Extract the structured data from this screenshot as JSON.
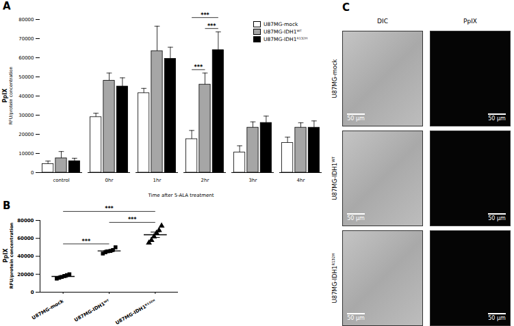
{
  "chart_data": [
    {
      "type": "bar",
      "panel": "A",
      "y_label": [
        "PpIX",
        "RFU/protein concentration"
      ],
      "x_label": "Time after 5-ALA treatment",
      "categories": [
        "control",
        "0hr",
        "1hr",
        "2hr",
        "3hr",
        "4hr"
      ],
      "series": [
        {
          "name": "U87MG-mock",
          "color": "#ffffff",
          "values": [
            4500,
            29000,
            41500,
            17500,
            10500,
            15500
          ],
          "errors": [
            1500,
            2000,
            2500,
            4500,
            3500,
            3000
          ]
        },
        {
          "name": "U87MG-IDH1ᵂᵀ",
          "color": "#a6a6a6",
          "values": [
            7500,
            48000,
            63500,
            46000,
            23500,
            23500
          ],
          "errors": [
            3500,
            4000,
            13000,
            6000,
            3000,
            2500
          ]
        },
        {
          "name": "U87MG-IDH1ᴿ¹³²ᴴ",
          "color": "#000000",
          "values": [
            6000,
            45000,
            59500,
            64000,
            26000,
            23500
          ],
          "errors": [
            1500,
            4500,
            6000,
            9500,
            3500,
            3500
          ]
        }
      ],
      "ylim": [
        0,
        80000
      ],
      "yticks": [
        0,
        10000,
        20000,
        30000,
        40000,
        50000,
        60000,
        70000,
        80000
      ],
      "grid": false,
      "legend": "top-right",
      "annotations": [
        {
          "text": "***",
          "category": "2hr",
          "from": "U87MG-mock",
          "to": "U87MG-IDH1ᵂᵀ"
        },
        {
          "text": "***",
          "category": "2hr",
          "from": "U87MG-mock",
          "to": "U87MG-IDH1ᴿ¹³²ᴴ"
        },
        {
          "text": "***",
          "category": "2hr",
          "from": "U87MG-IDH1ᵂᵀ",
          "to": "U87MG-IDH1ᴿ¹³²ᴴ"
        }
      ]
    },
    {
      "type": "scatter",
      "panel": "B",
      "y_label": [
        "PpIX",
        "RFU/protein concentration"
      ],
      "series": [
        {
          "name": "U87MG-mock",
          "color": "#000000",
          "marker": "square",
          "values": [
            15000,
            16000,
            17000,
            18000,
            19000,
            20000
          ],
          "mean": 17500,
          "error": 1000
        },
        {
          "name": "U87MG-IDH1ᵂᵀ",
          "color": "#000000",
          "marker": "square",
          "values": [
            43000,
            44500,
            45500,
            46000,
            47000,
            50000
          ],
          "mean": 46000,
          "error": 1000
        },
        {
          "name": "U87MG-IDH1ᴿ¹³²ᴴ",
          "color": "#000000",
          "marker": "triangle",
          "values": [
            55000,
            58000,
            62000,
            66000,
            69000,
            74000
          ],
          "mean": 64000,
          "error": 3000
        }
      ],
      "ylim": [
        0,
        80000
      ],
      "yticks": [
        0,
        20000,
        40000,
        60000,
        80000
      ],
      "grid": false,
      "annotations": [
        {
          "text": "***",
          "from": "U87MG-mock",
          "to": "U87MG-IDH1ᵂᵀ"
        },
        {
          "text": "***",
          "from": "U87MG-mock",
          "to": "U87MG-IDH1ᴿ¹³²ᴴ"
        },
        {
          "text": "***",
          "from": "U87MG-IDH1ᵂᵀ",
          "to": "U87MG-IDH1ᴿ¹³²ᴴ"
        }
      ]
    }
  ],
  "panel_c": {
    "panel": "C",
    "columns": [
      "DIC",
      "PpIX"
    ],
    "rows": [
      "U87MG-mock",
      "U87MG-IDH1ᵂᵀ",
      "U87MG-IDH1ᴿ¹³²ᴴ"
    ],
    "scale_bar": "50 µm"
  }
}
